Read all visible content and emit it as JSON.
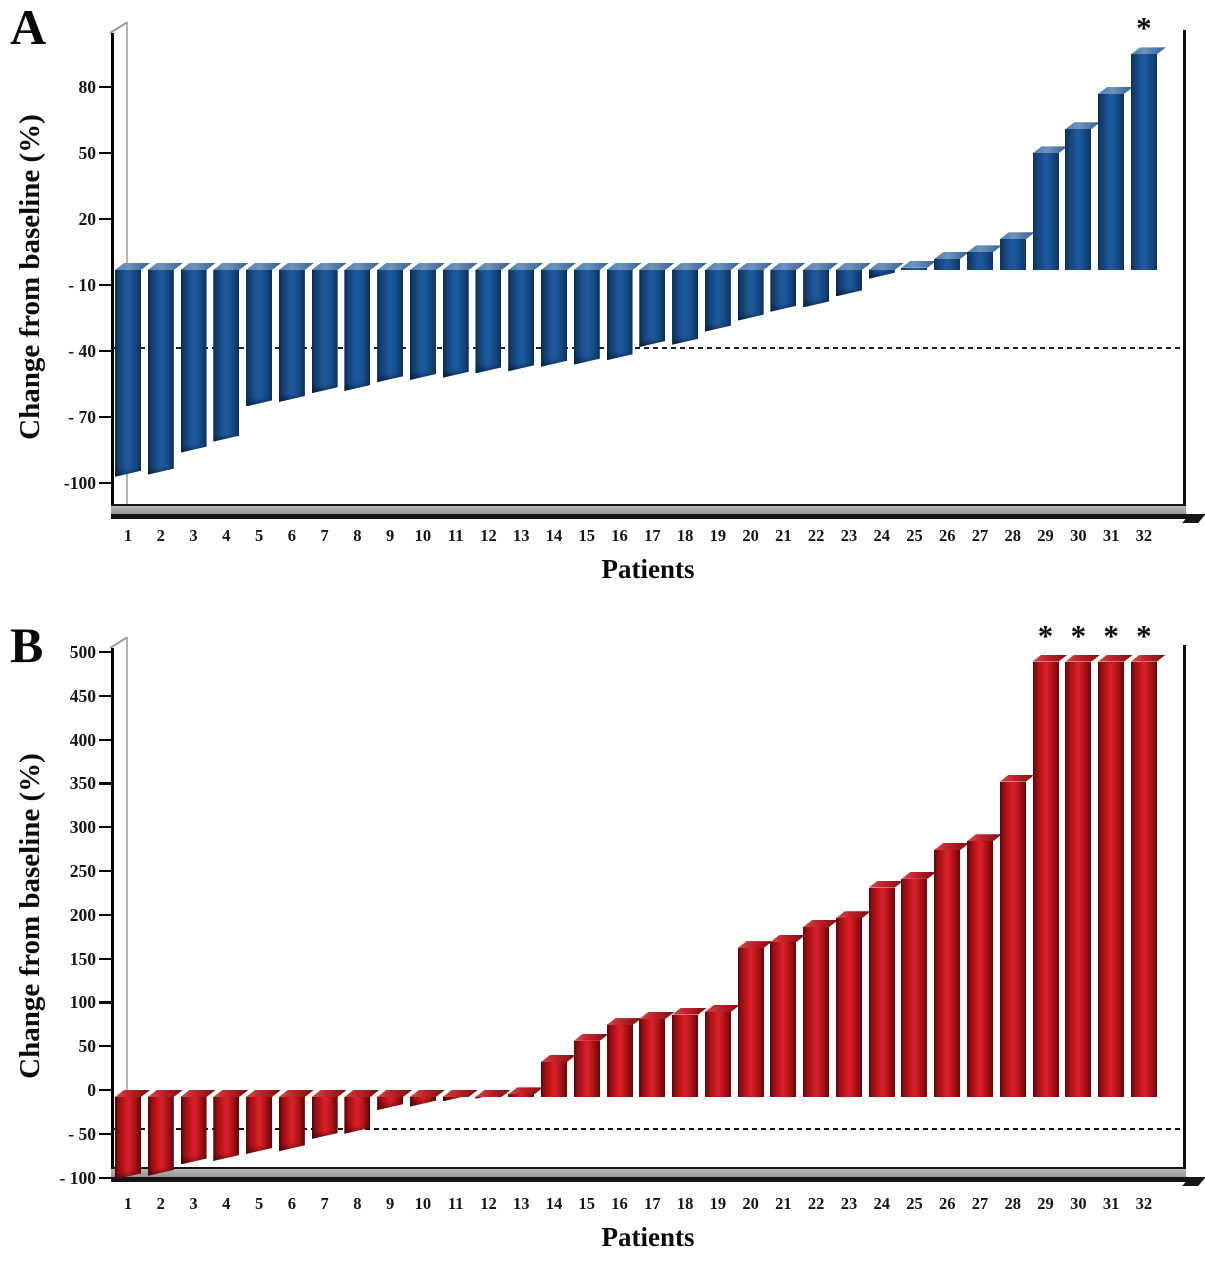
{
  "figure_title": "",
  "asterisk_symbol": "*",
  "chart_data": [
    {
      "type": "bar",
      "panel_label": "A",
      "title": "",
      "xlabel": "Patients",
      "ylabel": "Change from baseline (%)",
      "categories": [
        "1",
        "2",
        "3",
        "4",
        "5",
        "6",
        "7",
        "8",
        "9",
        "10",
        "11",
        "12",
        "13",
        "14",
        "15",
        "16",
        "17",
        "18",
        "19",
        "20",
        "21",
        "22",
        "23",
        "24",
        "25",
        "26",
        "27",
        "28",
        "29",
        "30",
        "31",
        "32"
      ],
      "values": [
        -94,
        -93,
        -83,
        -78,
        -62,
        -60,
        -56,
        -55,
        -51,
        -50,
        -49,
        -47,
        -46,
        -44,
        -43,
        -41,
        -35,
        -34,
        -28,
        -23,
        -19,
        -17,
        -12,
        -4,
        1,
        5,
        8,
        14,
        53,
        64,
        80,
        98
      ],
      "ylim": [
        -100,
        100
      ],
      "yticks": [
        80,
        50,
        20,
        -10,
        -40,
        -70,
        -100
      ],
      "ytick_labels": [
        "80",
        "50",
        "20",
        "- 10",
        "- 40",
        "- 70",
        "-100"
      ],
      "reference_line": -35,
      "asterisk_categories": [
        "32"
      ],
      "bar_color": "#1a4f8c",
      "grid": false,
      "legend": null
    },
    {
      "type": "bar",
      "panel_label": "B",
      "title": "",
      "xlabel": "Patients",
      "ylabel": "Change from baseline (%)",
      "categories": [
        "1",
        "2",
        "3",
        "4",
        "5",
        "6",
        "7",
        "8",
        "9",
        "10",
        "11",
        "12",
        "13",
        "14",
        "15",
        "16",
        "17",
        "18",
        "19",
        "20",
        "21",
        "22",
        "23",
        "24",
        "25",
        "26",
        "27",
        "28",
        "29",
        "30",
        "31",
        "32"
      ],
      "values": [
        -94,
        -90,
        -77,
        -73,
        -65,
        -62,
        -48,
        -42,
        -15,
        -11,
        -5,
        -2,
        3,
        40,
        64,
        82,
        89,
        94,
        97,
        170,
        177,
        194,
        204,
        239,
        249,
        282,
        292,
        360,
        497,
        497,
        497,
        497
      ],
      "ylim": [
        -100,
        500
      ],
      "yticks": [
        500,
        450,
        400,
        350,
        300,
        250,
        200,
        150,
        100,
        50,
        0,
        -50,
        -100
      ],
      "ytick_labels": [
        "500",
        "450",
        "400",
        "350",
        "300",
        "250",
        "200",
        "150",
        "100",
        "50",
        "0",
        "- 50",
        "- 100"
      ],
      "reference_line": -35,
      "asterisk_categories": [
        "29",
        "30",
        "31",
        "32"
      ],
      "bar_color": "#c81e24",
      "grid": false,
      "legend": null
    }
  ]
}
